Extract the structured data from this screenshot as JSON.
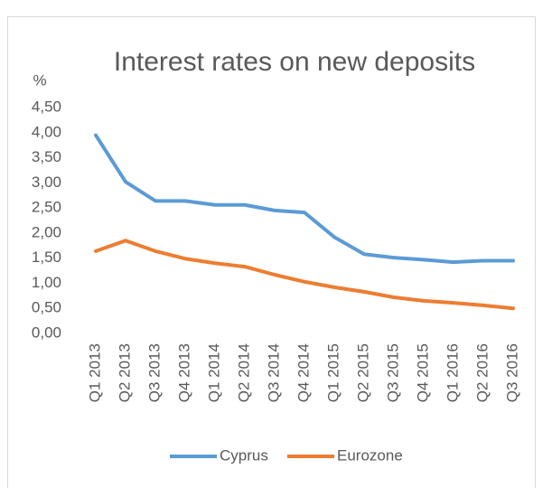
{
  "chart_data": {
    "type": "line",
    "title": "Interest rates on new deposits",
    "y_label": "%",
    "categories": [
      "Q1 2013",
      "Q2 2013",
      "Q3 2013",
      "Q4 2013",
      "Q1 2014",
      "Q2 2014",
      "Q3 2014",
      "Q4 2014",
      "Q1 2015",
      "Q2 2015",
      "Q3 2015",
      "Q4 2015",
      "Q1 2016",
      "Q2 2016",
      "Q3 2016"
    ],
    "series": [
      {
        "name": "Cyprus",
        "color": "#5b9bd5",
        "values": [
          3.95,
          3.02,
          2.64,
          2.64,
          2.56,
          2.56,
          2.45,
          2.41,
          1.92,
          1.58,
          1.51,
          1.47,
          1.42,
          1.45,
          1.45
        ]
      },
      {
        "name": "Eurozone",
        "color": "#ed7d31",
        "values": [
          1.64,
          1.85,
          1.64,
          1.49,
          1.4,
          1.33,
          1.17,
          1.03,
          0.92,
          0.83,
          0.72,
          0.65,
          0.61,
          0.56,
          0.5
        ]
      }
    ],
    "ylim": [
      0,
      4.5
    ],
    "yticks": [
      {
        "value": 0,
        "label": "0,00"
      },
      {
        "value": 0.5,
        "label": "0,50"
      },
      {
        "value": 1,
        "label": "1,00"
      },
      {
        "value": 1.5,
        "label": "1,50"
      },
      {
        "value": 2,
        "label": "2,00"
      },
      {
        "value": 2.5,
        "label": "2,50"
      },
      {
        "value": 3,
        "label": "3,00"
      },
      {
        "value": 3.5,
        "label": "3,50"
      },
      {
        "value": 4,
        "label": "4,00"
      },
      {
        "value": 4.5,
        "label": "4,50"
      }
    ],
    "grid": false,
    "legend": "bottom"
  }
}
